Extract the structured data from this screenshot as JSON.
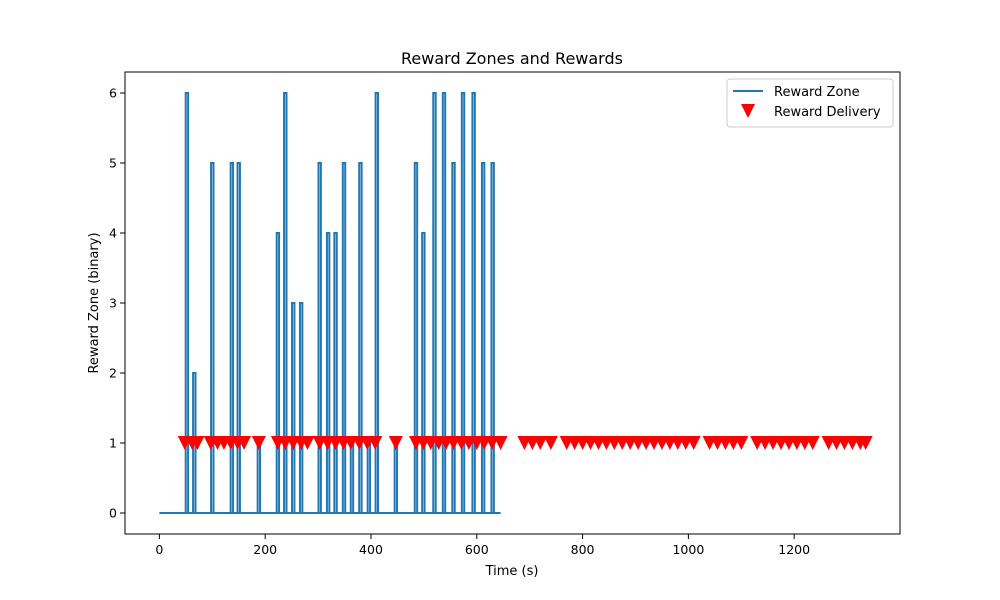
{
  "chart_data": {
    "type": "line",
    "title": "Reward Zones and Rewards",
    "xlabel": "Time (s)",
    "ylabel": "Reward Zone (binary)",
    "xlim": [
      -65,
      1400
    ],
    "ylim": [
      -0.3,
      6.3
    ],
    "xticks": [
      0,
      200,
      400,
      600,
      800,
      1000,
      1200
    ],
    "yticks": [
      0,
      1,
      2,
      3,
      4,
      5,
      6
    ],
    "grid": false,
    "legend_position": "top-right",
    "series": [
      {
        "name": "Reward Zone",
        "kind": "line",
        "color": "#1f77b4",
        "x_range": [
          0,
          645
        ],
        "baseline": 0,
        "spikes": [
          {
            "x": 52,
            "y": 6
          },
          {
            "x": 66,
            "y": 2
          },
          {
            "x": 100,
            "y": 5
          },
          {
            "x": 137,
            "y": 5
          },
          {
            "x": 150,
            "y": 5
          },
          {
            "x": 188,
            "y": 1
          },
          {
            "x": 224,
            "y": 4
          },
          {
            "x": 238,
            "y": 6
          },
          {
            "x": 253,
            "y": 3
          },
          {
            "x": 268,
            "y": 3
          },
          {
            "x": 303,
            "y": 5
          },
          {
            "x": 319,
            "y": 4
          },
          {
            "x": 333,
            "y": 4
          },
          {
            "x": 349,
            "y": 5
          },
          {
            "x": 364,
            "y": 1
          },
          {
            "x": 380,
            "y": 5
          },
          {
            "x": 396,
            "y": 1
          },
          {
            "x": 411,
            "y": 6
          },
          {
            "x": 447,
            "y": 1
          },
          {
            "x": 485,
            "y": 5
          },
          {
            "x": 499,
            "y": 4
          },
          {
            "x": 520,
            "y": 6
          },
          {
            "x": 538,
            "y": 6
          },
          {
            "x": 556,
            "y": 5
          },
          {
            "x": 574,
            "y": 6
          },
          {
            "x": 594,
            "y": 6
          },
          {
            "x": 612,
            "y": 5
          },
          {
            "x": 630,
            "y": 5
          }
        ]
      },
      {
        "name": "Reward Delivery",
        "kind": "scatter",
        "marker": "triangle-down",
        "color": "#ff0000",
        "y": 1,
        "x": [
          48,
          62,
          72,
          97,
          110,
          122,
          135,
          148,
          160,
          188,
          224,
          238,
          253,
          268,
          280,
          303,
          318,
          333,
          348,
          362,
          378,
          393,
          408,
          447,
          485,
          499,
          513,
          528,
          542,
          556,
          571,
          585,
          600,
          614,
          629,
          645,
          690,
          705,
          720,
          740,
          770,
          785,
          800,
          815,
          830,
          845,
          860,
          875,
          890,
          905,
          920,
          935,
          950,
          965,
          980,
          995,
          1010,
          1040,
          1055,
          1070,
          1085,
          1100,
          1130,
          1145,
          1160,
          1175,
          1190,
          1205,
          1220,
          1235,
          1265,
          1280,
          1295,
          1310,
          1325,
          1335
        ]
      }
    ]
  }
}
